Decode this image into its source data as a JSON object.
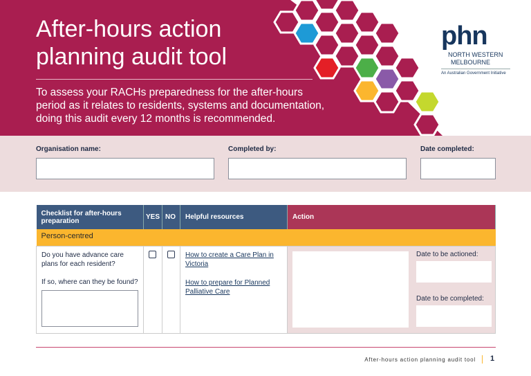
{
  "header": {
    "title_line1": "After-hours action",
    "title_line2": "planning audit tool",
    "subtitle": "To assess your RACHs preparedness for the after-hours period as it relates to residents, systems and documentation, doing this audit every 12 months is recommended.",
    "colors": {
      "brand": "#a91e50",
      "hex_blue": "#1e9ad6",
      "hex_red": "#e41f26",
      "hex_green": "#4caf48",
      "hex_purple": "#8a5aa8",
      "hex_orange": "#fbb62e",
      "hex_lime": "#c4d82e"
    }
  },
  "logo": {
    "mark": "phn",
    "line1": "NORTH WESTERN",
    "line2": "MELBOURNE",
    "tagline": "An Australian Government Initiative"
  },
  "form": {
    "org_label": "Organisation name:",
    "completed_by_label": "Completed by:",
    "date_label": "Date completed:"
  },
  "table": {
    "headers": {
      "checklist": "Checklist for after-hours preparation",
      "yes": "YES",
      "no": "NO",
      "resources": "Helpful resources",
      "action": "Action"
    },
    "category": "Person-centred",
    "row": {
      "question": "Do you have advance care plans for each resident?",
      "followup": "If so, where can they be found?",
      "links": [
        "How to create a Care Plan in Victoria",
        "How to prepare for Planned Palliative Care"
      ],
      "date_actioned_label": "Date to be actioned:",
      "date_completed_label": "Date to be completed:"
    }
  },
  "footer": {
    "title": "After-hours action planning audit tool",
    "page": "1"
  }
}
